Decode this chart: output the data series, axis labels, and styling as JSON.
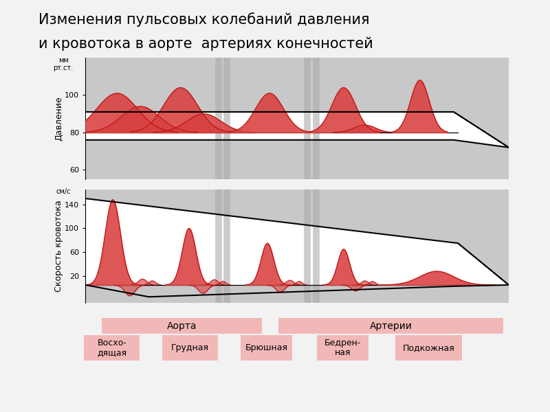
{
  "title_line1": "Изменения пульсовых колебаний давления и кровотока в аорте  артериях конечностей",
  "bg_color": "#c8c8c8",
  "white_color": "#ffffff",
  "red_fill_color": "#d94040",
  "red_line_color": "#bb1111",
  "label_bg_color": "#f2b8b8",
  "ylabel_top": "Давление",
  "ylabel_bottom": "Скорость кровотока",
  "yticks_top": [
    60,
    80,
    100
  ],
  "yticks_bottom": [
    20,
    60,
    100,
    140
  ],
  "artery_labels": [
    "Восхо-\nдящая",
    "Грудная",
    "Брюшная",
    "Бедрен-\nная",
    "Подкожная"
  ]
}
